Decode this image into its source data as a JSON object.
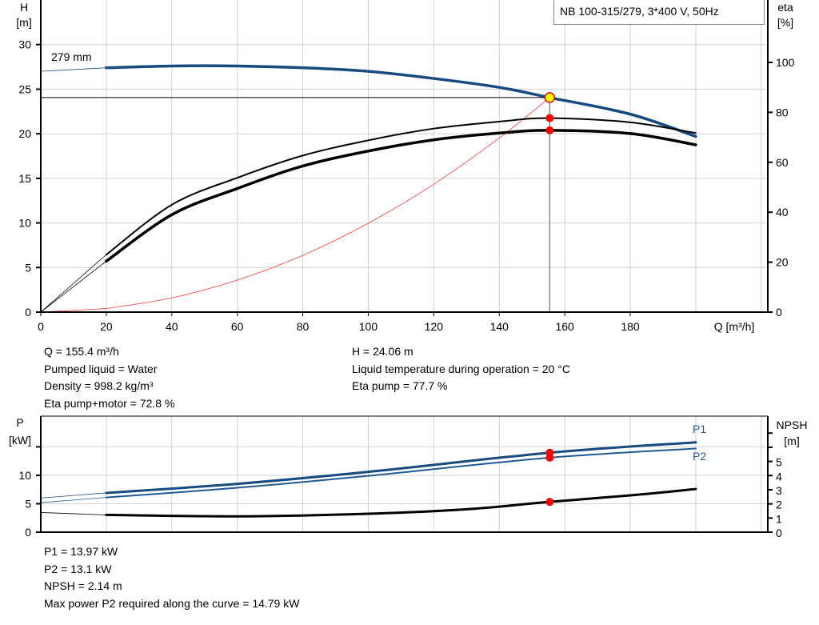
{
  "pump_title": "NB 100-315/279, 3*400 V, 50Hz",
  "colors": {
    "head": "#174a7e",
    "efficiency": "#000000",
    "system": "#ff3b3b",
    "p1": "#174a7e",
    "p2": "#1f5a94",
    "npsh": "#000000",
    "marker": "#ff0000",
    "duty_point": "#ffff00",
    "grid": "#d0d0d0"
  },
  "chart_data": [
    {
      "type": "line",
      "xlabel": "Q [m³/h]",
      "ylabel_left": [
        "H",
        "[m]"
      ],
      "ylabel_right": [
        "eta",
        "[%]"
      ],
      "xlim": [
        0,
        222
      ],
      "ylim_left": [
        0,
        35
      ],
      "ylim_right": [
        0,
        125
      ],
      "x_ticks": [
        0,
        20,
        40,
        60,
        80,
        100,
        120,
        140,
        160,
        180
      ],
      "y_ticks_left": [
        0,
        5,
        10,
        15,
        20,
        25,
        30
      ],
      "y_ticks_right": [
        0,
        20,
        40,
        60,
        80,
        100
      ],
      "grid": true,
      "curve_label": "279 mm",
      "series": [
        {
          "key": "head",
          "axis": "left",
          "x": [
            0,
            20,
            40,
            60,
            80,
            100,
            120,
            140,
            155.4,
            180,
            200
          ],
          "y": [
            27.0,
            27.4,
            27.6,
            27.6,
            27.4,
            27.0,
            26.2,
            25.2,
            24.06,
            22.2,
            19.7
          ]
        },
        {
          "key": "eta_pump",
          "axis": "right",
          "x": [
            0,
            20,
            40,
            60,
            80,
            100,
            120,
            140,
            155.4,
            180,
            200
          ],
          "y": [
            0,
            23,
            43,
            53.8,
            62.7,
            68.8,
            73.5,
            76.3,
            77.7,
            76,
            71.7
          ]
        },
        {
          "key": "eta_pump_motor",
          "axis": "right",
          "x": [
            0,
            20,
            40,
            60,
            80,
            100,
            120,
            140,
            155.4,
            180,
            200
          ],
          "y": [
            0,
            20.4,
            39,
            49.5,
            58.5,
            64.5,
            69,
            71.7,
            72.8,
            71.5,
            67
          ]
        },
        {
          "key": "system",
          "axis": "left",
          "x": [
            0,
            20,
            40,
            60,
            80,
            100,
            120,
            140,
            155.4
          ],
          "y": [
            0,
            0.4,
            1.59,
            3.59,
            6.37,
            9.96,
            14.34,
            19.52,
            24.06
          ]
        }
      ],
      "duty_point": {
        "q": 155.4,
        "h": 24.06,
        "eta_pump": 77.7,
        "eta_pump_motor": 72.8
      }
    },
    {
      "type": "line",
      "ylabel_left": [
        "P",
        "[kW]"
      ],
      "ylabel_right": [
        "NPSH",
        "[m]"
      ],
      "xlim": [
        0,
        222
      ],
      "ylim_left": [
        0,
        20.4
      ],
      "ylim_right": [
        0,
        8.2
      ],
      "y_ticks_left": [
        0,
        5,
        10,
        15
      ],
      "y_tick_labels_left": [
        "0",
        "5",
        "10",
        ""
      ],
      "y_ticks_right": [
        0,
        1,
        2,
        3,
        4,
        5,
        6,
        7
      ],
      "y_tick_labels_right": [
        "0",
        "1",
        "2",
        "3",
        "4",
        "5",
        "",
        ""
      ],
      "grid": true,
      "series": [
        {
          "key": "p1",
          "name": "P1",
          "axis": "left",
          "x": [
            0,
            20,
            60,
            100,
            155.4,
            200
          ],
          "y": [
            6.0,
            6.9,
            8.5,
            10.6,
            13.97,
            15.8
          ]
        },
        {
          "key": "p2",
          "name": "P2",
          "axis": "left",
          "x": [
            0,
            20,
            60,
            100,
            155.4,
            200
          ],
          "y": [
            5.2,
            6.1,
            7.8,
            9.9,
            13.1,
            14.7
          ]
        },
        {
          "key": "npsh",
          "axis": "right",
          "x": [
            0,
            20,
            60,
            100,
            130,
            155.4,
            180,
            200
          ],
          "y": [
            1.39,
            1.22,
            1.12,
            1.3,
            1.62,
            2.14,
            2.6,
            3.05
          ]
        }
      ],
      "duty_point": {
        "q": 155.4,
        "p1": 13.97,
        "p2": 13.1,
        "npsh": 2.14
      }
    }
  ],
  "info_upper_left": [
    "Q = 155.4 m³/h",
    "Pumped liquid = Water",
    "Density = 998.2 kg/m³",
    "Eta pump+motor = 72.8 %"
  ],
  "info_upper_right": [
    "H = 24.06 m",
    "Liquid temperature during operation = 20 °C",
    "Eta pump = 77.7 %"
  ],
  "info_lower": [
    "P1 = 13.97 kW",
    "P2 = 13.1 kW",
    "NPSH = 2.14 m",
    "Max power P2 required along the curve = 14.79 kW"
  ]
}
